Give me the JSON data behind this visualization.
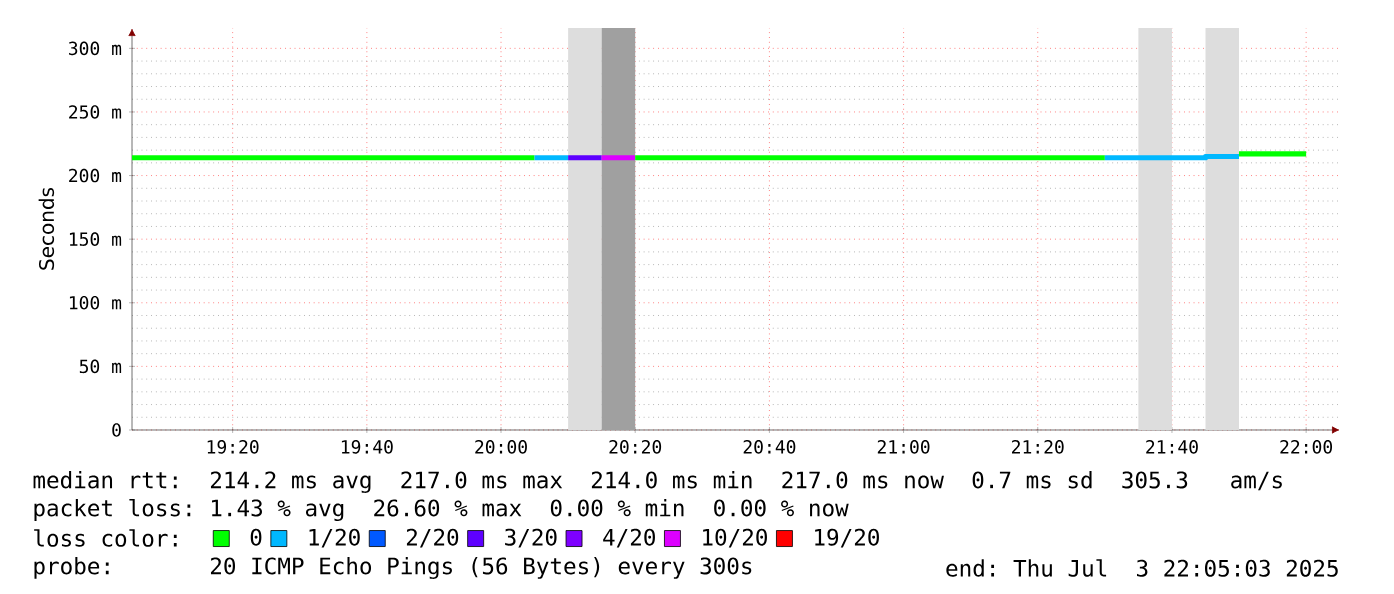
{
  "chart_data": {
    "type": "step",
    "ylabel": "Seconds",
    "xlim": [
      19.0833,
      22.0842
    ],
    "ylim": [
      0,
      316
    ],
    "xticks": [
      {
        "value": 19.3333,
        "label": "19:20"
      },
      {
        "value": 19.6667,
        "label": "19:40"
      },
      {
        "value": 20,
        "label": "20:00"
      },
      {
        "value": 20.3333,
        "label": "20:20"
      },
      {
        "value": 20.6667,
        "label": "20:40"
      },
      {
        "value": 21,
        "label": "21:00"
      },
      {
        "value": 21.3333,
        "label": "21:20"
      },
      {
        "value": 21.6667,
        "label": "21:40"
      },
      {
        "value": 22,
        "label": "22:00"
      }
    ],
    "yticks": [
      {
        "value": 0,
        "label": "0"
      },
      {
        "value": 50,
        "label": "50 m"
      },
      {
        "value": 100,
        "label": "100 m"
      },
      {
        "value": 150,
        "label": "150 m"
      },
      {
        "value": 200,
        "label": "200 m"
      },
      {
        "value": 250,
        "label": "250 m"
      },
      {
        "value": 300,
        "label": "300 m"
      }
    ],
    "grid": true,
    "legend": "bottom",
    "legend_title": "loss color:",
    "series": [
      {
        "name": "0",
        "color": "#00ff00",
        "x": [
          19.0833,
          20.0833
        ],
        "values": [
          214,
          214
        ]
      },
      {
        "name": "1/20",
        "color": "#00b8ff",
        "x": [
          20.0833,
          20.1667
        ],
        "values": [
          214,
          214
        ]
      },
      {
        "name": "2/20",
        "color": "#0059ff"
      },
      {
        "name": "3/20",
        "color": "#5e00ff",
        "x": [
          20.1667,
          20.25
        ],
        "values": [
          214,
          214
        ]
      },
      {
        "name": "4/20",
        "color": "#7e00ff"
      },
      {
        "name": "10/20",
        "color": "#dd00ff",
        "x": [
          20.25,
          20.3333
        ],
        "values": [
          214,
          214
        ]
      },
      {
        "name": "19/20",
        "color": "#ff0000"
      },
      {
        "color": "#00ff00",
        "x": [
          20.3333,
          21.5
        ],
        "values": [
          214,
          214
        ]
      },
      {
        "color": "#00b8ff",
        "x": [
          21.5,
          21.75,
          21.8333
        ],
        "values": [
          214,
          214,
          215
        ]
      },
      {
        "color": "#00ff00",
        "x": [
          21.8333,
          22.0
        ],
        "values": [
          217,
          217
        ]
      }
    ],
    "bands": [
      {
        "axis": "x",
        "from": 20.1667,
        "to": 20.25,
        "color": "#dddddd"
      },
      {
        "axis": "x",
        "from": 20.25,
        "to": 20.3333,
        "color": "#a0a0a0"
      },
      {
        "axis": "x",
        "from": 21.5833,
        "to": 21.6667,
        "color": "#dddddd"
      },
      {
        "axis": "x",
        "from": 21.75,
        "to": 21.8333,
        "color": "#dddddd"
      }
    ],
    "annotations": [
      "median rtt:  214.2 ms avg  217.0 ms max  214.0 ms min  217.0 ms now  0.7 ms sd  305.3   am/s",
      "packet loss: 1.43 % avg  26.60 % max  0.00 % min  0.00 % now",
      "probe:       20 ICMP Echo Pings (56 Bytes) every 300s",
      "end: Thu Jul  3 22:05:03 2025"
    ]
  }
}
